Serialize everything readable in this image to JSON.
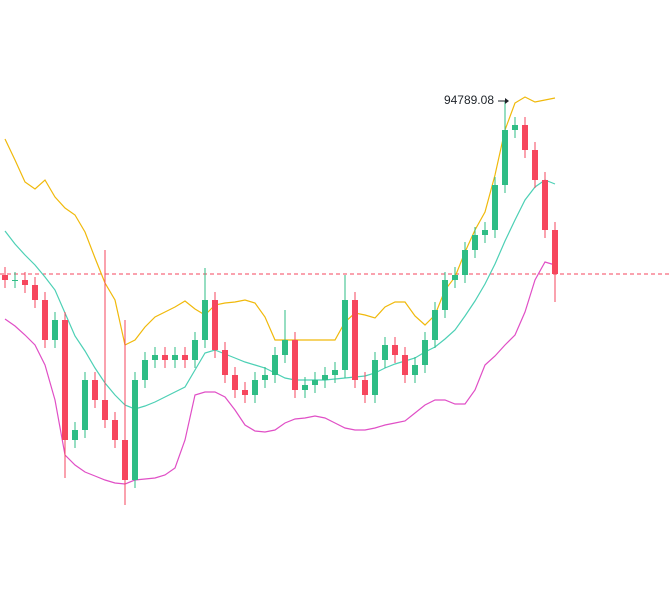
{
  "chart_data": {
    "type": "candlestick",
    "ylim": [
      85009,
      96809
    ],
    "open": [
      91309,
      91209,
      91209,
      91109,
      90809,
      90009,
      90409,
      88009,
      88209,
      89209,
      88809,
      88409,
      88009,
      87209,
      89209,
      89609,
      89709,
      89609,
      89709,
      89609,
      90009,
      90809,
      89809,
      89309,
      89009,
      88909,
      89209,
      89309,
      89709,
      90009,
      89009,
      89109,
      89209,
      89309,
      89409,
      90809,
      89209,
      88909,
      89609,
      89909,
      89709,
      89309,
      89509,
      90009,
      90609,
      91209,
      91309,
      91809,
      92109,
      92209,
      93109,
      94209,
      94309,
      93809,
      93209,
      92209
    ],
    "high": [
      91469,
      91369,
      91369,
      91269,
      90969,
      90569,
      90569,
      88369,
      89369,
      89369,
      91809,
      88569,
      90409,
      89369,
      89769,
      89869,
      89869,
      89869,
      89869,
      90169,
      91449,
      90969,
      89969,
      89469,
      89169,
      89369,
      89469,
      89869,
      90609,
      90169,
      89269,
      89369,
      89469,
      89569,
      91309,
      90969,
      89369,
      89769,
      90069,
      90069,
      89869,
      89669,
      90169,
      90769,
      91369,
      91469,
      91969,
      92269,
      92369,
      93269,
      94789.08,
      94469,
      94469,
      93969,
      93369,
      92369
    ],
    "low": [
      91049,
      91049,
      90949,
      90649,
      89849,
      89849,
      87249,
      87849,
      88049,
      88649,
      88249,
      87849,
      86709,
      87049,
      89049,
      89449,
      89449,
      89449,
      89449,
      89449,
      89849,
      89649,
      89149,
      88849,
      88749,
      88749,
      89049,
      89149,
      89549,
      88849,
      88849,
      88949,
      89049,
      89149,
      89249,
      89049,
      88749,
      88749,
      89449,
      89549,
      89149,
      89149,
      89349,
      89849,
      90449,
      91049,
      91149,
      91649,
      91949,
      92049,
      92949,
      94049,
      93649,
      93049,
      92049,
      90769
    ],
    "close": [
      91209,
      91209,
      91109,
      90809,
      90009,
      90409,
      88009,
      88209,
      89209,
      88809,
      88409,
      88009,
      87209,
      89209,
      89609,
      89709,
      89609,
      89709,
      89609,
      90009,
      90809,
      89809,
      89309,
      89009,
      88909,
      89209,
      89309,
      89709,
      90009,
      89009,
      89109,
      89209,
      89309,
      89409,
      90809,
      89209,
      88909,
      89609,
      89909,
      89709,
      89309,
      89509,
      90009,
      90609,
      91209,
      91309,
      91809,
      92109,
      92209,
      93109,
      94209,
      94309,
      93809,
      93209,
      92209,
      91329
    ],
    "up_color": "#2ebd85",
    "down_color": "#f6465d",
    "bands": [
      {
        "color": "#f0b90b",
        "values": [
          94029,
          93609,
          93169,
          93029,
          93209,
          92869,
          92649,
          92509,
          92169,
          91649,
          91149,
          90809,
          89909,
          90009,
          90269,
          90469,
          90569,
          90669,
          90789,
          90629,
          90509,
          90709,
          90749,
          90769,
          90809,
          90749,
          90469,
          90009,
          90009,
          90009,
          90009,
          90009,
          90009,
          90009,
          90369,
          90549,
          90509,
          90449,
          90669,
          90769,
          90769,
          90489,
          90309,
          90509,
          91009,
          91269,
          91769,
          92209,
          92569,
          93309,
          94209,
          94749,
          94869,
          94769,
          94809,
          94849
        ]
      },
      {
        "color": "#4dd0b5",
        "values": [
          92189,
          91929,
          91709,
          91509,
          91269,
          91009,
          90549,
          90089,
          89789,
          89449,
          89149,
          88909,
          88709,
          88629,
          88689,
          88769,
          88869,
          88969,
          89069,
          89409,
          89749,
          89809,
          89729,
          89649,
          89569,
          89509,
          89449,
          89349,
          89249,
          89209,
          89209,
          89209,
          89209,
          89229,
          89249,
          89269,
          89289,
          89349,
          89449,
          89529,
          89589,
          89649,
          89769,
          89869,
          90029,
          90209,
          90489,
          90789,
          91129,
          91529,
          91989,
          92409,
          92809,
          93069,
          93209,
          93129
        ]
      },
      {
        "color": "#e04fc6",
        "values": [
          90429,
          90289,
          90109,
          89909,
          89509,
          88809,
          87709,
          87509,
          87369,
          87289,
          87209,
          87149,
          87129,
          87209,
          87229,
          87249,
          87309,
          87449,
          88009,
          88909,
          88969,
          88969,
          88869,
          88609,
          88309,
          88189,
          88169,
          88209,
          88349,
          88429,
          88449,
          88489,
          88449,
          88349,
          88249,
          88209,
          88209,
          88249,
          88309,
          88349,
          88389,
          88549,
          88709,
          88809,
          88809,
          88729,
          88729,
          89009,
          89509,
          89689,
          89909,
          90109,
          90569,
          91209,
          91569,
          91509
        ]
      }
    ],
    "last_price_color": "#f6465d"
  }
}
